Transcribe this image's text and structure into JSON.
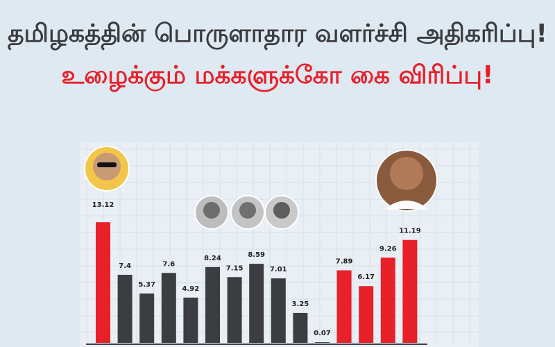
{
  "header": {
    "title": "தமிழகத்தின் பொருளாதார வளர்ச்சி அதிகரிப்பு!",
    "subtitle": "உழைக்கும் மக்களுக்கோ கை விரிப்பு!"
  },
  "chart_data": {
    "type": "bar",
    "title": "தமிழகத்தின் பொருளாதார வளர்ச்சி அதிகரிப்பு!",
    "subtitle": "உழைக்கும் மக்களுக்கோ கை விரிப்பு!",
    "xlabel": "",
    "ylabel": "",
    "ylim": [
      0,
      14
    ],
    "grid": true,
    "values": [
      13.12,
      7.4,
      5.37,
      7.6,
      4.92,
      8.24,
      7.15,
      8.59,
      7.01,
      3.25,
      0.07,
      7.89,
      6.17,
      9.26,
      11.19
    ],
    "labels": [
      "13.12",
      "7.4",
      "5.37",
      "7.6",
      "4.92",
      "8.24",
      "7.15",
      "8.59",
      "7.01",
      "3.25",
      "0.07",
      "7.89",
      "6.17",
      "9.26",
      "11.19"
    ],
    "bar_colors": [
      "#e8202a",
      "#3b3d40",
      "#3b3d40",
      "#3b3d40",
      "#3b3d40",
      "#3b3d40",
      "#3b3d40",
      "#3b3d40",
      "#3b3d40",
      "#3b3d40",
      "#3b3d40",
      "#e8202a",
      "#e8202a",
      "#e8202a",
      "#e8202a"
    ],
    "colors": {
      "red": "#e8202a",
      "dark": "#3b3d40",
      "title": "#3a3c3e"
    }
  }
}
